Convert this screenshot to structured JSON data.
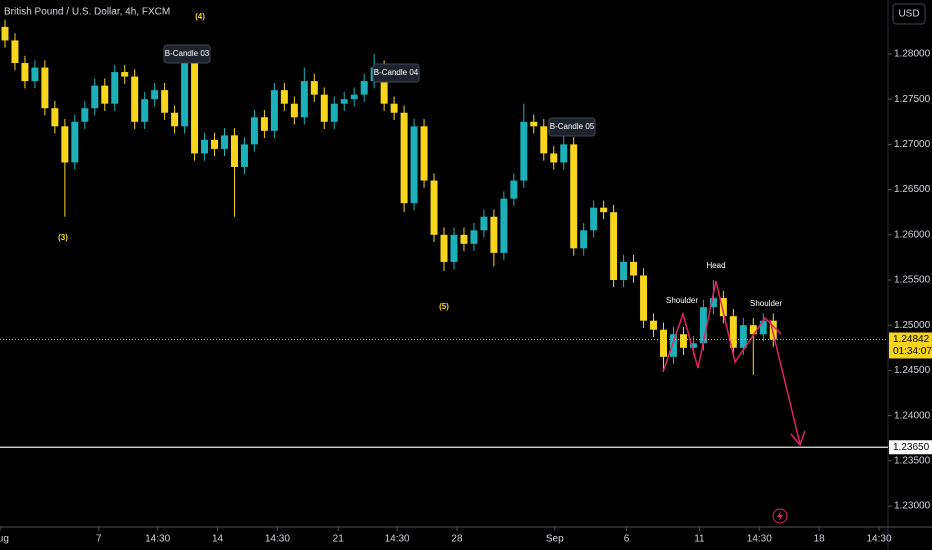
{
  "chart_data": {
    "type": "candlestick",
    "title": "British Pound / U.S. Dollar, 4h, FXCM",
    "currency": "USD",
    "up_color": "#1cb0b8",
    "down_color": "#f7d51d",
    "ylim": [
      1.22768,
      1.28597
    ],
    "yticks": [
      {
        "value": 1.23,
        "label": "1.23000"
      },
      {
        "value": 1.235,
        "label": "1.23500"
      },
      {
        "value": 1.24,
        "label": "1.24000"
      },
      {
        "value": 1.245,
        "label": "1.24500"
      },
      {
        "value": 1.25,
        "label": "1.25000"
      },
      {
        "value": 1.255,
        "label": "1.25500"
      },
      {
        "value": 1.26,
        "label": "1.26000"
      },
      {
        "value": 1.265,
        "label": "1.26500"
      },
      {
        "value": 1.27,
        "label": "1.27000"
      },
      {
        "value": 1.275,
        "label": "1.27500"
      },
      {
        "value": 1.28,
        "label": "1.28000"
      }
    ],
    "xlim": [
      0,
      89
    ],
    "xticks": [
      {
        "value": 0,
        "label": "Aug"
      },
      {
        "value": 9.9,
        "label": "7"
      },
      {
        "value": 15.8,
        "label": "14:30"
      },
      {
        "value": 21.8,
        "label": "14"
      },
      {
        "value": 27.8,
        "label": "14:30"
      },
      {
        "value": 33.9,
        "label": "21"
      },
      {
        "value": 39.8,
        "label": "14:30"
      },
      {
        "value": 45.8,
        "label": "28"
      },
      {
        "value": 55.6,
        "label": "Sep"
      },
      {
        "value": 62.8,
        "label": "6"
      },
      {
        "value": 70.1,
        "label": "11"
      },
      {
        "value": 76.1,
        "label": "14:30"
      },
      {
        "value": 82.1,
        "label": "18"
      },
      {
        "value": 88.1,
        "label": "14:30"
      }
    ],
    "ohlc": {
      "open": [
        1.283,
        1.2815,
        1.279,
        1.277,
        1.2785,
        1.274,
        1.272,
        1.268,
        1.2725,
        1.274,
        1.2765,
        1.2745,
        1.278,
        1.2775,
        1.2725,
        1.275,
        1.276,
        1.2735,
        1.272,
        1.279,
        1.269,
        1.2705,
        1.2695,
        1.271,
        1.2675,
        1.27,
        1.273,
        1.2715,
        1.276,
        1.2745,
        1.273,
        1.277,
        1.2755,
        1.2725,
        1.2745,
        1.275,
        1.2755,
        1.277,
        1.2785,
        1.2745,
        1.2735,
        1.2635,
        1.272,
        1.266,
        1.26,
        1.257,
        1.26,
        1.259,
        1.2605,
        1.262,
        1.258,
        1.264,
        1.266,
        1.2725,
        1.272,
        1.269,
        1.268,
        1.27,
        1.2585,
        1.2605,
        1.263,
        1.2625,
        1.255,
        1.257,
        1.2555,
        1.2505,
        1.2495,
        1.2465,
        1.249,
        1.2475,
        1.248,
        1.252,
        1.253,
        1.251,
        1.2475,
        1.25,
        1.249,
        1.2505
      ],
      "high": [
        1.2838,
        1.2823,
        1.2798,
        1.2793,
        1.2793,
        1.2748,
        1.2728,
        1.2733,
        1.2748,
        1.2773,
        1.2773,
        1.2788,
        1.2788,
        1.2783,
        1.2758,
        1.2768,
        1.2768,
        1.2743,
        1.281,
        1.2798,
        1.2713,
        1.2713,
        1.2718,
        1.2718,
        1.2708,
        1.2738,
        1.2738,
        1.2768,
        1.2768,
        1.2753,
        1.2785,
        1.2778,
        1.2763,
        1.2753,
        1.2758,
        1.2763,
        1.2778,
        1.28,
        1.2793,
        1.2753,
        1.2743,
        1.2728,
        1.2728,
        1.2668,
        1.2608,
        1.2608,
        1.2608,
        1.2613,
        1.2628,
        1.2628,
        1.2648,
        1.2668,
        1.2745,
        1.2733,
        1.2728,
        1.2698,
        1.272,
        1.2708,
        1.2613,
        1.2638,
        1.2638,
        1.2633,
        1.2578,
        1.2578,
        1.2563,
        1.2513,
        1.2503,
        1.2498,
        1.2498,
        1.2488,
        1.2528,
        1.255,
        1.2538,
        1.2518,
        1.2508,
        1.2508,
        1.2513,
        1.2513
      ],
      "low": [
        1.2807,
        1.2782,
        1.2762,
        1.2762,
        1.2732,
        1.2712,
        1.262,
        1.2672,
        1.2717,
        1.2732,
        1.2737,
        1.2737,
        1.2767,
        1.2717,
        1.2717,
        1.2742,
        1.2727,
        1.2712,
        1.2712,
        1.2682,
        1.2682,
        1.2687,
        1.2687,
        1.262,
        1.2667,
        1.2692,
        1.2707,
        1.2707,
        1.2737,
        1.2722,
        1.2722,
        1.2747,
        1.2717,
        1.2717,
        1.2737,
        1.2742,
        1.2747,
        1.2762,
        1.2737,
        1.2727,
        1.2625,
        1.2627,
        1.2652,
        1.2592,
        1.256,
        1.2562,
        1.2582,
        1.2582,
        1.2597,
        1.2565,
        1.2572,
        1.2632,
        1.2652,
        1.2712,
        1.2682,
        1.2672,
        1.2672,
        1.2577,
        1.2577,
        1.2597,
        1.2617,
        1.2542,
        1.2542,
        1.2547,
        1.2497,
        1.2487,
        1.245,
        1.2457,
        1.2467,
        1.2467,
        1.2472,
        1.2512,
        1.2502,
        1.2467,
        1.2467,
        1.2445,
        1.2482,
        1.2476
      ],
      "close": [
        1.2815,
        1.279,
        1.277,
        1.2785,
        1.274,
        1.272,
        1.268,
        1.2725,
        1.274,
        1.2765,
        1.2745,
        1.278,
        1.2775,
        1.2725,
        1.275,
        1.276,
        1.2735,
        1.272,
        1.279,
        1.269,
        1.2705,
        1.2695,
        1.271,
        1.2675,
        1.27,
        1.273,
        1.2715,
        1.276,
        1.2745,
        1.273,
        1.277,
        1.2755,
        1.2725,
        1.2745,
        1.275,
        1.2755,
        1.277,
        1.2785,
        1.2745,
        1.2735,
        1.2635,
        1.272,
        1.266,
        1.26,
        1.257,
        1.26,
        1.259,
        1.2605,
        1.262,
        1.258,
        1.264,
        1.266,
        1.2725,
        1.272,
        1.269,
        1.268,
        1.27,
        1.2585,
        1.2605,
        1.263,
        1.2625,
        1.255,
        1.257,
        1.2555,
        1.2505,
        1.2495,
        1.2465,
        1.249,
        1.2475,
        1.248,
        1.252,
        1.253,
        1.251,
        1.2475,
        1.25,
        1.249,
        1.2505,
        1.2484
      ]
    },
    "price_line": {
      "value": 1.24842,
      "label": "1.24842",
      "countdown": "01:34:07"
    },
    "level_line": {
      "value": 1.2365,
      "label": "1.23650"
    },
    "annotations": {
      "wave_3": "(3)",
      "wave_4": "(4)",
      "wave_5": "(5)",
      "b_candle_03": "B-Candle 03",
      "b_candle_04": "B-Candle 04",
      "b_candle_05": "B-Candle 05",
      "left_shoulder": "Shoulder",
      "head": "Head",
      "right_shoulder": "Shoulder"
    }
  }
}
